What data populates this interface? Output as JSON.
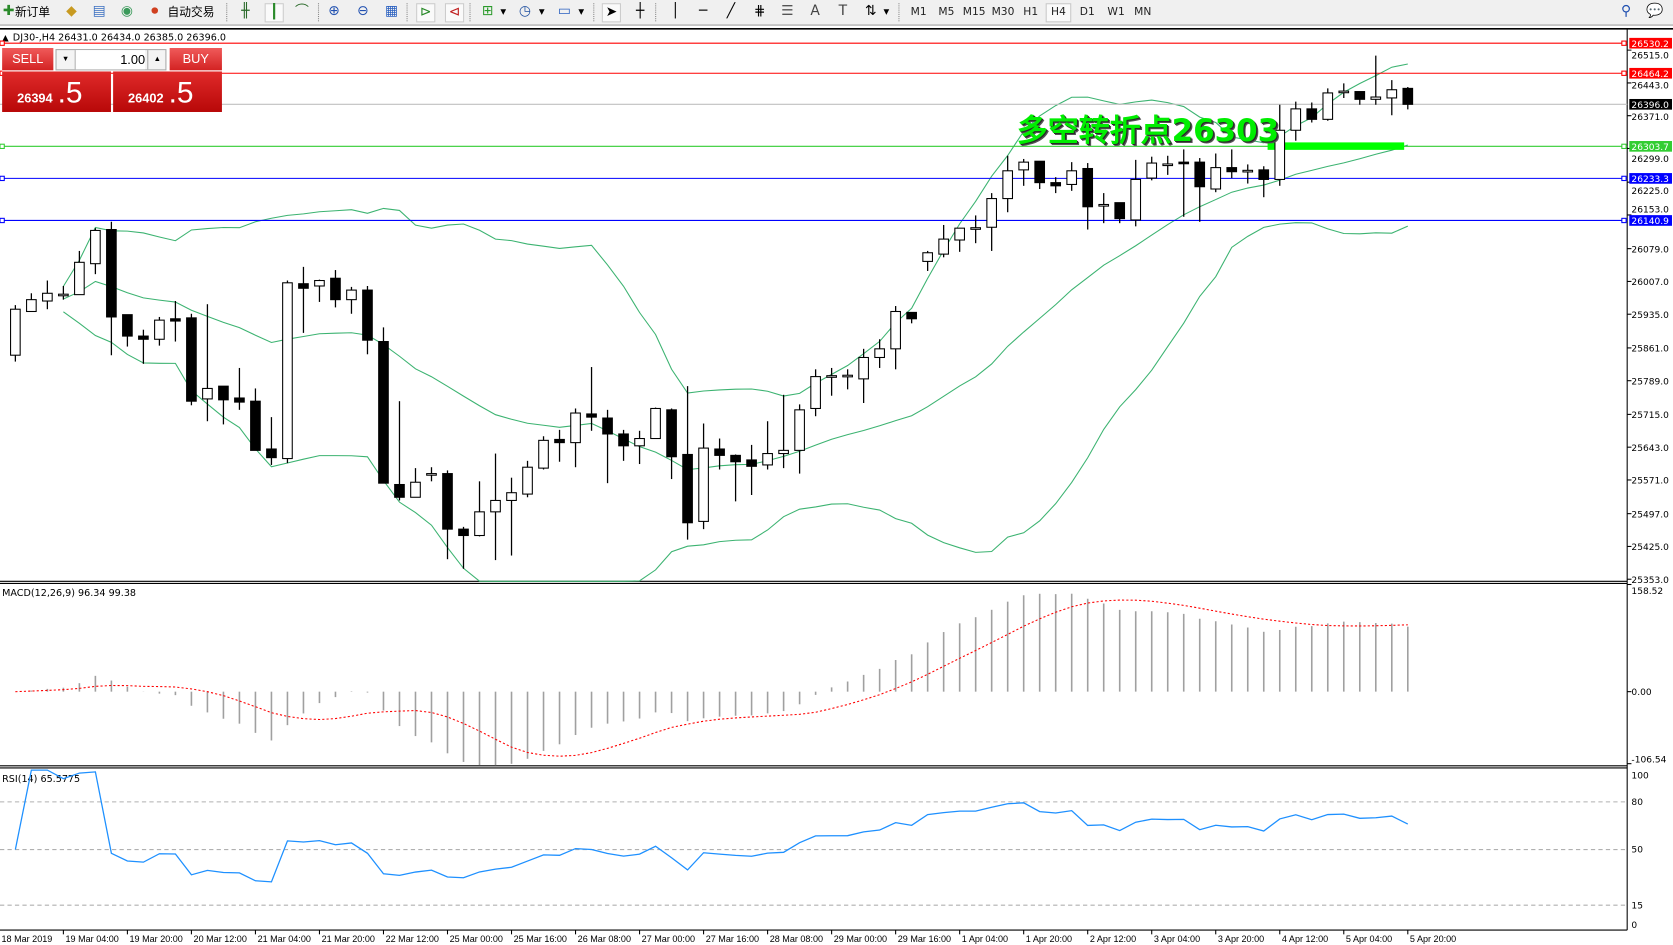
{
  "toolbar": {
    "new_order": "新订单",
    "auto_trade": "自动交易",
    "timeframes": [
      "M1",
      "M5",
      "M15",
      "M30",
      "H1",
      "H4",
      "D1",
      "W1",
      "MN"
    ],
    "active_timeframe": "H4",
    "icons": [
      "new-order-icon",
      "market-watch-icon",
      "navigator-icon",
      "signals-icon",
      "auto-trade-icon",
      "bar-chart-icon",
      "candlestick-icon",
      "line-chart-icon",
      "zoom-in-icon",
      "zoom-out-icon",
      "tile-windows-icon",
      "auto-scroll-icon",
      "chart-shift-icon",
      "indicators-icon",
      "periods-icon",
      "templates-icon",
      "cursor-icon",
      "crosshair-icon",
      "vertical-line-icon",
      "horizontal-line-icon",
      "trendline-icon",
      "equidistant-channel-icon",
      "fibonacci-icon",
      "text-icon",
      "text-label-icon",
      "arrows-icon",
      "search-icon",
      "chat-icon"
    ]
  },
  "trade_panel": {
    "sell_label": "SELL",
    "buy_label": "BUY",
    "lot": "1.00",
    "sell_price_main": "26394",
    "sell_price_frac": ".5",
    "buy_price_main": "26402",
    "buy_price_frac": ".5",
    "color": "#d32222"
  },
  "chart": {
    "symbol_line": "DJ30-,H4  26431.0 26434.0 26385.0 26396.0",
    "annotation": "多空转折点26303",
    "annotation_color": "#00ee00",
    "macd_label": "MACD(12,26,9) 96.34 99.38",
    "rsi_label": "RSI(14) 65.5775"
  },
  "chart_data": {
    "type": "candlestick",
    "symbol": "DJ30-",
    "timeframe": "H4",
    "ohlc": [
      [
        25845,
        25955,
        25831,
        25946
      ],
      [
        25941,
        25981,
        25941,
        25967
      ],
      [
        25964,
        26009,
        25946,
        25981
      ],
      [
        25978,
        25997,
        25967,
        25979
      ],
      [
        25978,
        26074,
        25978,
        26049
      ],
      [
        26046,
        26124,
        26023,
        26119
      ],
      [
        26121,
        26138,
        25845,
        25929
      ],
      [
        25934,
        25934,
        25864,
        25887
      ],
      [
        25887,
        25901,
        25826,
        25880
      ],
      [
        25880,
        25929,
        25866,
        25922
      ],
      [
        25925,
        25964,
        25875,
        25920
      ],
      [
        25927,
        25936,
        25735,
        25744
      ],
      [
        25749,
        25957,
        25700,
        25772
      ],
      [
        25777,
        25777,
        25693,
        25747
      ],
      [
        25751,
        25817,
        25725,
        25742
      ],
      [
        25744,
        25772,
        25636,
        25636
      ],
      [
        25639,
        25709,
        25604,
        25620
      ],
      [
        25618,
        26009,
        25608,
        26004
      ],
      [
        26002,
        26039,
        25894,
        25992
      ],
      [
        25997,
        26011,
        25962,
        26009
      ],
      [
        26014,
        26032,
        25950,
        25967
      ],
      [
        25967,
        25995,
        25936,
        25988
      ],
      [
        25988,
        25997,
        25847,
        25878
      ],
      [
        25875,
        25906,
        25564,
        25564
      ],
      [
        25561,
        25744,
        25526,
        25533
      ],
      [
        25533,
        25597,
        25533,
        25566
      ],
      [
        25585,
        25599,
        25568,
        25585
      ],
      [
        25585,
        25592,
        25397,
        25463
      ],
      [
        25463,
        25468,
        25376,
        25449
      ],
      [
        25449,
        25568,
        25447,
        25501
      ],
      [
        25501,
        25629,
        25395,
        25526
      ],
      [
        25526,
        25576,
        25405,
        25543
      ],
      [
        25540,
        25613,
        25533,
        25599
      ],
      [
        25597,
        25667,
        25594,
        25658
      ],
      [
        25660,
        25681,
        25611,
        25653
      ],
      [
        25653,
        25728,
        25599,
        25718
      ],
      [
        25716,
        25819,
        25679,
        25709
      ],
      [
        25707,
        25725,
        25564,
        25672
      ],
      [
        25672,
        25681,
        25613,
        25646
      ],
      [
        25646,
        25679,
        25606,
        25662
      ],
      [
        25662,
        25730,
        25662,
        25728
      ],
      [
        25725,
        25728,
        25573,
        25622
      ],
      [
        25627,
        25777,
        25440,
        25477
      ],
      [
        25480,
        25695,
        25463,
        25641
      ],
      [
        25639,
        25662,
        25594,
        25625
      ],
      [
        25625,
        25627,
        25524,
        25611
      ],
      [
        25615,
        25648,
        25538,
        25601
      ],
      [
        25604,
        25700,
        25594,
        25629
      ],
      [
        25629,
        25758,
        25597,
        25636
      ],
      [
        25636,
        25737,
        25585,
        25725
      ],
      [
        25728,
        25814,
        25711,
        25798
      ],
      [
        25800,
        25817,
        25756,
        25800
      ],
      [
        25800,
        25814,
        25770,
        25801
      ],
      [
        25793,
        25859,
        25740,
        25840
      ],
      [
        25840,
        25880,
        25817,
        25859
      ],
      [
        25859,
        25953,
        25814,
        25941
      ],
      [
        25939,
        25939,
        25915,
        25925
      ],
      [
        26051,
        26074,
        26030,
        26070
      ],
      [
        26067,
        26131,
        26060,
        26100
      ],
      [
        26098,
        26124,
        26072,
        26124
      ],
      [
        26124,
        26152,
        26091,
        26125
      ],
      [
        26126,
        26201,
        26074,
        26189
      ],
      [
        26189,
        26283,
        26159,
        26250
      ],
      [
        26252,
        26276,
        26217,
        26269
      ],
      [
        26271,
        26271,
        26210,
        26224
      ],
      [
        26224,
        26236,
        26201,
        26217
      ],
      [
        26220,
        26269,
        26206,
        26250
      ],
      [
        26255,
        26267,
        26121,
        26171
      ],
      [
        26175,
        26201,
        26135,
        26176
      ],
      [
        26180,
        26180,
        26135,
        26145
      ],
      [
        26142,
        26274,
        26128,
        26231
      ],
      [
        26234,
        26281,
        26229,
        26267
      ],
      [
        26264,
        26283,
        26241,
        26265
      ],
      [
        26269,
        26297,
        26149,
        26267
      ],
      [
        26269,
        26278,
        26138,
        26215
      ],
      [
        26210,
        26288,
        26203,
        26257
      ],
      [
        26257,
        26297,
        26234,
        26248
      ],
      [
        26250,
        26264,
        26222,
        26251
      ],
      [
        26252,
        26260,
        26192,
        26231
      ],
      [
        26231,
        26395,
        26217,
        26339
      ],
      [
        26339,
        26402,
        26316,
        26386
      ],
      [
        26386,
        26400,
        26356,
        26363
      ],
      [
        26363,
        26431,
        26360,
        26421
      ],
      [
        26424,
        26442,
        26410,
        26425
      ],
      [
        26424,
        26424,
        26395,
        26407
      ],
      [
        26407,
        26503,
        26395,
        26412
      ],
      [
        26410,
        26449,
        26372,
        26428
      ],
      [
        26431,
        26434,
        26385,
        26396
      ]
    ],
    "price_ticks": [
      26515.0,
      26443.0,
      26371.0,
      26299.0,
      26225.0,
      26153.0,
      26079.0,
      26007.0,
      25935.0,
      25861.0,
      25789.0,
      25715.0,
      25643.0,
      25571.0,
      25497.0,
      25425.0,
      25353.0
    ],
    "ylim": [
      25353.0,
      26515.0
    ],
    "hlines": [
      {
        "price": "26530.2",
        "color": "#ff0000"
      },
      {
        "price": "26464.2",
        "color": "#ff0000"
      },
      {
        "price": "26396.0",
        "color": "#000000",
        "line_color": "#c0c0c0"
      },
      {
        "price": "26303.7",
        "color": "#32cd32"
      },
      {
        "price": "26233.3",
        "color": "#0000ff"
      },
      {
        "price": "26140.9",
        "color": "#0000ff"
      }
    ],
    "time_labels": [
      "18 Mar 2019",
      "19 Mar 04:00",
      "19 Mar 20:00",
      "20 Mar 12:00",
      "21 Mar 04:00",
      "21 Mar 20:00",
      "22 Mar 12:00",
      "25 Mar 00:00",
      "25 Mar 16:00",
      "26 Mar 08:00",
      "27 Mar 00:00",
      "27 Mar 16:00",
      "28 Mar 08:00",
      "29 Mar 00:00",
      "29 Mar 16:00",
      "1 Apr 04:00",
      "1 Apr 20:00",
      "2 Apr 12:00",
      "3 Apr 04:00",
      "3 Apr 20:00",
      "4 Apr 12:00",
      "5 Apr 04:00",
      "5 Apr 20:00"
    ],
    "indicators": {
      "bollinger": {
        "period": 20,
        "deviation": 2,
        "color": "#3cb371"
      },
      "macd": {
        "fast": 12,
        "slow": 26,
        "signal": 9,
        "main": 96.34,
        "signal_value": 99.38,
        "ylim": [
          -106.54,
          158.52
        ],
        "ticks": [
          "158.52",
          "0.00",
          "-106.54"
        ],
        "bar_color": "#a0a0a0",
        "signal_color": "#ff0000"
      },
      "rsi": {
        "period": 14,
        "value": 65.5775,
        "ticks": [
          "100",
          "80",
          "50",
          "15",
          "0"
        ],
        "levels": [
          80,
          50,
          15
        ],
        "color": "#1e90ff"
      }
    },
    "annotation_zone": {
      "price": 26303,
      "color": "#00ff00"
    }
  }
}
